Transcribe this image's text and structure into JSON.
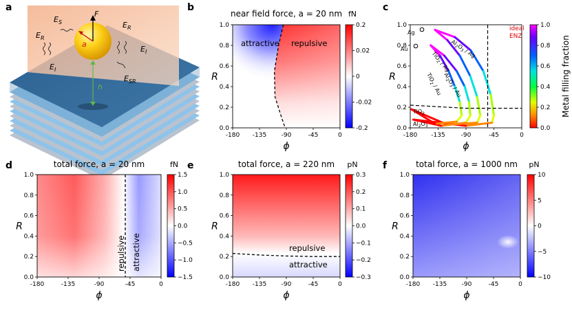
{
  "panel_labels": [
    "a",
    "b",
    "c",
    "d",
    "e",
    "f"
  ],
  "schematic": {
    "labels": [
      "E",
      "S",
      "E",
      "R",
      "E",
      "R",
      "E",
      "I",
      "E",
      "I",
      "E",
      "SR",
      "F",
      "a",
      "h"
    ]
  },
  "chart_data": [
    {
      "id": "b",
      "type": "heatmap",
      "title": "near field force, a = 20 nm",
      "xlabel": "ϕ",
      "ylabel": "R",
      "xlim": [
        -180,
        0
      ],
      "ylim": [
        0,
        1
      ],
      "xticks": [
        "-180",
        "-135",
        "-90",
        "-45",
        "0"
      ],
      "yticks": [
        "0.0",
        "0.2",
        "0.4",
        "0.6",
        "0.8",
        "1.0"
      ],
      "colorbar": {
        "unit": "fN",
        "ticks": [
          "0.2",
          "0.02",
          "0",
          "-0.02",
          "-0.2"
        ],
        "range": [
          -0.2,
          0.2
        ]
      },
      "regions": [
        "attractive",
        "repulsive"
      ],
      "boundary": {
        "style": "dashed",
        "points": [
          [
            -95,
            1.0
          ],
          [
            -103,
            0.8
          ],
          [
            -110,
            0.55
          ],
          [
            -109,
            0.3
          ],
          [
            -98,
            0.1
          ],
          [
            -92,
            0.0
          ]
        ]
      }
    },
    {
      "id": "c",
      "type": "line",
      "xlabel": "ϕ",
      "ylabel": "R",
      "xlim": [
        -180,
        0
      ],
      "ylim": [
        0,
        1
      ],
      "xticks": [
        "-180",
        "-135",
        "-90",
        "-45",
        "0"
      ],
      "yticks": [
        "0.0",
        "0.2",
        "0.4",
        "0.6",
        "0.8",
        "1.0"
      ],
      "annotation": "ideal ENZ",
      "colorbar": {
        "label": "Metal filling fraction",
        "ticks": [
          "1.0",
          "0.8",
          "0.6",
          "0.4",
          "0.2",
          "0.0"
        ],
        "range": [
          0,
          1
        ]
      },
      "point_labels": [
        "Ag",
        "Au",
        "TiO2",
        "Al2O3"
      ],
      "series": [
        {
          "name": "Al2O3 / Ag",
          "points": [
            [
              -140,
              0.95
            ],
            [
              -108,
              0.88
            ],
            [
              -82,
              0.75
            ],
            [
              -62,
              0.55
            ],
            [
              -50,
              0.32
            ],
            [
              -45,
              0.12
            ],
            [
              -48,
              0.05
            ],
            [
              -90,
              0.02
            ],
            [
              -175,
              0.08
            ]
          ]
        },
        {
          "name": "TiO2 / Ag",
          "points": [
            [
              -140,
              0.95
            ],
            [
              -120,
              0.85
            ],
            [
              -100,
              0.7
            ],
            [
              -83,
              0.5
            ],
            [
              -72,
              0.3
            ],
            [
              -67,
              0.12
            ],
            [
              -72,
              0.05
            ],
            [
              -120,
              0.03
            ],
            [
              -178,
              0.18
            ]
          ]
        },
        {
          "name": "Al2O3 / Au",
          "points": [
            [
              -147,
              0.8
            ],
            [
              -125,
              0.7
            ],
            [
              -105,
              0.55
            ],
            [
              -92,
              0.4
            ],
            [
              -85,
              0.25
            ],
            [
              -83,
              0.12
            ],
            [
              -90,
              0.05
            ],
            [
              -130,
              0.02
            ],
            [
              -175,
              0.08
            ]
          ]
        },
        {
          "name": "TiO2 / Au",
          "points": [
            [
              -147,
              0.8
            ],
            [
              -132,
              0.7
            ],
            [
              -118,
              0.55
            ],
            [
              -108,
              0.4
            ],
            [
              -100,
              0.25
            ],
            [
              -97,
              0.12
            ],
            [
              -105,
              0.06
            ],
            [
              -140,
              0.04
            ],
            [
              -178,
              0.18
            ]
          ]
        }
      ],
      "vline": -55,
      "hline": [
        [
          -180,
          0.22
        ],
        [
          -90,
          0.19
        ],
        [
          0,
          0.19
        ]
      ]
    },
    {
      "id": "d",
      "type": "heatmap",
      "title": "total force, a = 20 nm",
      "xlabel": "ϕ",
      "ylabel": "R",
      "xlim": [
        -180,
        0
      ],
      "ylim": [
        0,
        1
      ],
      "xticks": [
        "-180",
        "-135",
        "-90",
        "-45",
        "0"
      ],
      "yticks": [
        "0.0",
        "0.2",
        "0.4",
        "0.6",
        "0.8",
        "1.0"
      ],
      "colorbar": {
        "unit": "fN",
        "ticks": [
          "1.5",
          "1.0",
          "0.5",
          "0.0",
          "−0.5",
          "−1.0",
          "−1.5"
        ],
        "range": [
          -1.5,
          1.5
        ]
      },
      "regions": [
        "repulsive",
        "attractive"
      ],
      "boundary_x": -52
    },
    {
      "id": "e",
      "type": "heatmap",
      "title": "total force, a = 220 nm",
      "xlabel": "ϕ",
      "ylabel": "R",
      "xlim": [
        -180,
        0
      ],
      "ylim": [
        0,
        1
      ],
      "xticks": [
        "-180",
        "-135",
        "-90",
        "-45",
        "0"
      ],
      "yticks": [
        "0.0",
        "0.2",
        "0.4",
        "0.6",
        "0.8",
        "1.0"
      ],
      "colorbar": {
        "unit": "pN",
        "ticks": [
          "0.3",
          "0.2",
          "0.1",
          "0.0",
          "−0.1",
          "−0.2",
          "−0.3"
        ],
        "range": [
          -0.3,
          0.3
        ]
      },
      "regions": [
        "repulsive",
        "attractive"
      ],
      "boundary": {
        "style": "dashed",
        "points": [
          [
            -180,
            0.23
          ],
          [
            -135,
            0.215
          ],
          [
            -90,
            0.205
          ],
          [
            -45,
            0.2
          ],
          [
            0,
            0.2
          ]
        ]
      }
    },
    {
      "id": "f",
      "type": "heatmap",
      "title": "total force, a = 1000 nm",
      "xlabel": "ϕ",
      "ylabel": "R",
      "xlim": [
        -180,
        0
      ],
      "ylim": [
        0,
        1
      ],
      "xticks": [
        "-180",
        "-135",
        "-90",
        "-45",
        "0"
      ],
      "yticks": [
        "0.0",
        "0.2",
        "0.4",
        "0.6",
        "0.8",
        "1.0"
      ],
      "colorbar": {
        "unit": "pN",
        "ticks": [
          "10",
          "5",
          "0",
          "−5",
          "−10"
        ],
        "range": [
          -10,
          10
        ]
      }
    }
  ],
  "colors": {
    "red": "#ee1111",
    "blue": "#1111ee",
    "white": "#ffffff"
  }
}
